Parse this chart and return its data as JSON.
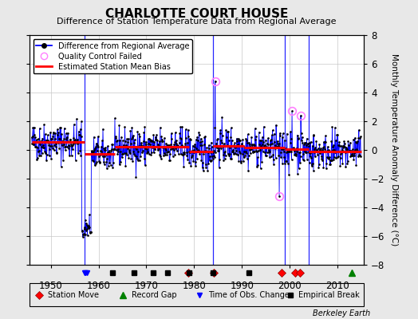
{
  "title": "CHARLOTTE COURT HOUSE",
  "subtitle": "Difference of Station Temperature Data from Regional Average",
  "ylabel": "Monthly Temperature Anomaly Difference (°C)",
  "xlabel_years": [
    1950,
    1960,
    1970,
    1980,
    1990,
    2000,
    2010
  ],
  "ylim": [
    -8,
    8
  ],
  "xlim": [
    1945.5,
    2015.5
  ],
  "background_color": "#e8e8e8",
  "plot_bg_color": "#ffffff",
  "grid_color": "#c8c8c8",
  "watermark": "Berkeley Earth",
  "segments": [
    {
      "x_start": 1946.0,
      "x_end": 1957.0,
      "bias": 0.55
    },
    {
      "x_start": 1957.0,
      "x_end": 1963.5,
      "bias": -0.3
    },
    {
      "x_start": 1963.5,
      "x_end": 1979.0,
      "bias": 0.2
    },
    {
      "x_start": 1979.0,
      "x_end": 1984.0,
      "bias": -0.1
    },
    {
      "x_start": 1984.0,
      "x_end": 1990.5,
      "bias": 0.3
    },
    {
      "x_start": 1990.5,
      "x_end": 1999.0,
      "bias": 0.15
    },
    {
      "x_start": 1999.0,
      "x_end": 2004.0,
      "bias": 0.05
    },
    {
      "x_start": 2004.0,
      "x_end": 2015.0,
      "bias": -0.1
    }
  ],
  "station_moves": [
    1978.8,
    1984.2,
    1998.3,
    2001.2,
    2002.2
  ],
  "record_gaps": [
    2013.0
  ],
  "time_obs_changes": [
    1957.0,
    1957.3,
    1957.6
  ],
  "empirical_breaks": [
    1963.0,
    1967.5,
    1971.5,
    1974.5,
    1979.0,
    1984.0,
    1991.5
  ],
  "qc_failed_points": [
    [
      1984.4,
      4.8
    ],
    [
      1997.8,
      -3.2
    ],
    [
      2000.5,
      2.7
    ],
    [
      2002.3,
      2.4
    ]
  ],
  "vertical_lines_blue": [
    1957.0,
    1984.0,
    1999.0,
    2004.0
  ],
  "seed": 42
}
